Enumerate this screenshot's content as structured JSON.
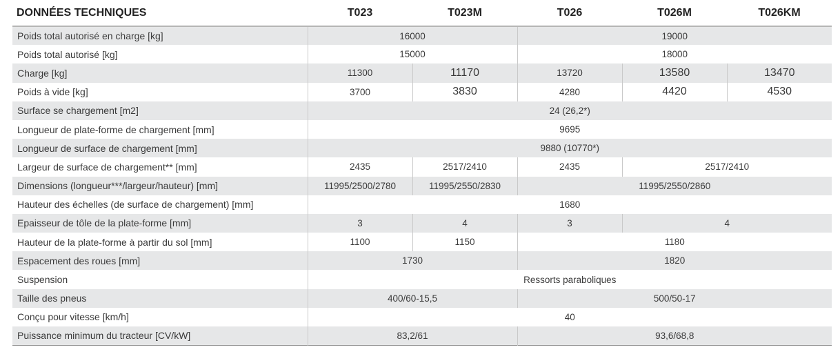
{
  "table": {
    "title": "DONNÉES TECHNIQUES",
    "models": [
      "T023",
      "T023M",
      "T026",
      "T026M",
      "T026KM"
    ],
    "rows": [
      {
        "label": "Poids total autorisé en charge [kg]",
        "cells": [
          {
            "v": "16000",
            "span": 2
          },
          {
            "v": "19000",
            "span": 3
          }
        ]
      },
      {
        "label": "Poids total autorisé [kg]",
        "cells": [
          {
            "v": "15000",
            "span": 2
          },
          {
            "v": "18000",
            "span": 3
          }
        ]
      },
      {
        "label": "Charge [kg]",
        "cells": [
          {
            "v": "11300",
            "span": 1
          },
          {
            "v": "11170",
            "span": 1
          },
          {
            "v": "13720",
            "span": 1
          },
          {
            "v": "13580",
            "span": 1
          },
          {
            "v": "13470",
            "span": 1
          }
        ]
      },
      {
        "label": "Poids à vide [kg]",
        "cells": [
          {
            "v": "3700",
            "span": 1
          },
          {
            "v": "3830",
            "span": 1
          },
          {
            "v": "4280",
            "span": 1
          },
          {
            "v": "4420",
            "span": 1
          },
          {
            "v": "4530",
            "span": 1
          }
        ]
      },
      {
        "label": "Surface se chargement [m2]",
        "cells": [
          {
            "v": "24 (26,2*)",
            "span": 5
          }
        ]
      },
      {
        "label": "Longueur de plate-forme de chargement [mm]",
        "cells": [
          {
            "v": "9695",
            "span": 5
          }
        ]
      },
      {
        "label": "Longueur de surface de chargement [mm]",
        "cells": [
          {
            "v": "9880 (10770*)",
            "span": 5
          }
        ]
      },
      {
        "label": "Largeur de surface de chargement** [mm]",
        "cells": [
          {
            "v": "2435",
            "span": 1
          },
          {
            "v": "2517/2410",
            "span": 1
          },
          {
            "v": "2435",
            "span": 1
          },
          {
            "v": "2517/2410",
            "span": 2
          }
        ]
      },
      {
        "label": "Dimensions (longueur***/largeur/hauteur) [mm]",
        "cells": [
          {
            "v": "11995/2500/2780",
            "span": 1
          },
          {
            "v": "11995/2550/2830",
            "span": 1
          },
          {
            "v": "11995/2550/2860",
            "span": 3
          }
        ]
      },
      {
        "label": "Hauteur des échelles (de surface de chargement) [mm]",
        "cells": [
          {
            "v": "1680",
            "span": 5
          }
        ]
      },
      {
        "label": "Epaisseur de tôle de la plate-forme [mm]",
        "cells": [
          {
            "v": "3",
            "span": 1
          },
          {
            "v": "4",
            "span": 1
          },
          {
            "v": "3",
            "span": 1
          },
          {
            "v": "4",
            "span": 2
          }
        ]
      },
      {
        "label": "Hauteur de la plate-forme à partir du sol [mm]",
        "cells": [
          {
            "v": "1100",
            "span": 1
          },
          {
            "v": "1150",
            "span": 1
          },
          {
            "v": "1180",
            "span": 3
          }
        ]
      },
      {
        "label": "Espacement des roues [mm]",
        "cells": [
          {
            "v": "1730",
            "span": 2
          },
          {
            "v": "1820",
            "span": 3
          }
        ]
      },
      {
        "label": "Suspension",
        "cells": [
          {
            "v": "Ressorts paraboliques",
            "span": 5
          }
        ]
      },
      {
        "label": "Taille des pneus",
        "cells": [
          {
            "v": "400/60-15,5",
            "span": 2
          },
          {
            "v": "500/50-17",
            "span": 3
          }
        ]
      },
      {
        "label": "Conçu pour vitesse [km/h]",
        "cells": [
          {
            "v": "40",
            "span": 5
          }
        ]
      },
      {
        "label": "Puissance minimum du tracteur [CV/kW]",
        "cells": [
          {
            "v": "83,2/61",
            "span": 2
          },
          {
            "v": "93,6/68,8",
            "span": 3
          }
        ]
      }
    ]
  }
}
